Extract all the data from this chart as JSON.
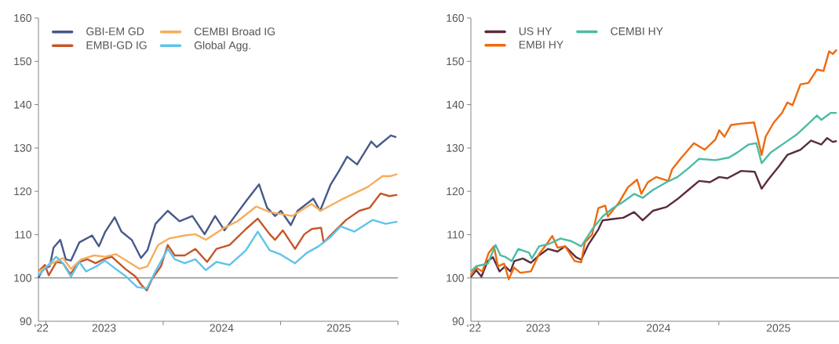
{
  "chart_data": [
    {
      "type": "line",
      "legend": "top left",
      "xlim": [
        "2022-12-09",
        "2026-01-01"
      ],
      "ylim": [
        90,
        160
      ],
      "yticks": [
        90,
        100,
        110,
        120,
        130,
        140,
        150,
        160
      ],
      "xticks": [
        {
          "value": "2022-12-18",
          "label": "‘22"
        },
        {
          "value": "2023-01-01",
          "label": null
        },
        {
          "value": "2023-07-01",
          "label": "2023"
        },
        {
          "value": "2024-01-01",
          "label": null
        },
        {
          "value": "2024-07-01",
          "label": "2024"
        },
        {
          "value": "2025-01-01",
          "label": null
        },
        {
          "value": "2025-07-01",
          "label": "2025"
        },
        {
          "value": "2026-01-01",
          "label": null
        }
      ],
      "ref_lines": [
        {
          "axis": "y",
          "value": 100,
          "color": "#808080"
        }
      ],
      "series": [
        {
          "name": "GBI-EM GD",
          "color": "#46598a",
          "x": [
            "2022-12-09",
            "2022-12-24",
            "2023-01-13",
            "2023-01-25",
            "2023-02-15",
            "2023-03-04",
            "2023-03-20",
            "2023-04-15",
            "2023-05-25",
            "2023-06-15",
            "2023-07-05",
            "2023-08-03",
            "2023-08-24",
            "2023-09-25",
            "2023-10-24",
            "2023-11-13",
            "2023-12-08",
            "2024-01-15",
            "2024-02-21",
            "2024-04-01",
            "2024-05-09",
            "2024-06-11",
            "2024-07-10",
            "2024-08-12",
            "2024-09-18",
            "2024-10-26",
            "2024-11-20",
            "2024-12-15",
            "2025-01-02",
            "2025-02-02",
            "2025-02-23",
            "2025-04-13",
            "2025-05-04",
            "2025-06-06",
            "2025-07-04",
            "2025-07-27",
            "2025-08-27",
            "2025-10-10",
            "2025-10-27",
            "2025-12-10",
            "2025-12-27"
          ],
          "values": [
            100.1,
            102.1,
            102.7,
            107.0,
            108.8,
            104.3,
            104.0,
            108.2,
            109.8,
            107.3,
            110.7,
            114.0,
            110.7,
            108.8,
            104.6,
            106.4,
            112.5,
            115.5,
            113.1,
            114.3,
            110.1,
            114.3,
            111.0,
            114.3,
            118.0,
            121.6,
            116.2,
            114.3,
            115.5,
            112.2,
            115.5,
            118.3,
            115.5,
            121.6,
            125.0,
            128.0,
            126.2,
            131.5,
            130.2,
            132.9,
            132.5
          ]
        },
        {
          "name": "EMBI-GD IG",
          "color": "#c5562a",
          "x": [
            "2022-12-09",
            "2022-12-29",
            "2023-01-10",
            "2023-02-03",
            "2023-02-23",
            "2023-03-18",
            "2023-04-15",
            "2023-05-10",
            "2023-06-05",
            "2023-06-29",
            "2023-07-25",
            "2023-09-05",
            "2023-10-07",
            "2023-10-24",
            "2023-11-11",
            "2023-11-27",
            "2023-12-25",
            "2024-01-15",
            "2024-02-06",
            "2024-03-08",
            "2024-04-10",
            "2024-05-17",
            "2024-06-15",
            "2024-07-26",
            "2024-09-15",
            "2024-10-22",
            "2024-11-28",
            "2024-12-15",
            "2025-01-08",
            "2025-02-15",
            "2025-03-16",
            "2025-04-08",
            "2025-05-07",
            "2025-05-15",
            "2025-06-17",
            "2025-07-24",
            "2025-09-03",
            "2025-10-05",
            "2025-11-08",
            "2025-12-05",
            "2025-12-30"
          ],
          "values": [
            101.5,
            103.0,
            100.6,
            103.7,
            103.4,
            100.9,
            103.7,
            104.3,
            103.4,
            104.3,
            104.9,
            102.1,
            100.3,
            98.5,
            97.1,
            99.7,
            102.7,
            107.6,
            105.2,
            105.2,
            106.7,
            103.7,
            106.7,
            107.6,
            111.3,
            113.7,
            110.1,
            108.8,
            111.0,
            106.7,
            110.1,
            111.3,
            111.6,
            108.2,
            110.7,
            113.4,
            115.5,
            116.2,
            119.5,
            118.9,
            119.2
          ]
        },
        {
          "name": "CEMBI Broad IG",
          "color": "#f7ad5a",
          "x": [
            "2022-12-09",
            "2023-01-21",
            "2023-02-23",
            "2023-03-20",
            "2023-04-21",
            "2023-06-01",
            "2023-07-05",
            "2023-08-06",
            "2023-09-08",
            "2023-10-19",
            "2023-11-13",
            "2023-12-16",
            "2024-01-19",
            "2024-03-08",
            "2024-04-10",
            "2024-05-13",
            "2024-07-10",
            "2024-08-20",
            "2024-10-17",
            "2024-11-28",
            "2025-02-06",
            "2025-04-07",
            "2025-05-06",
            "2025-07-07",
            "2025-09-29",
            "2025-11-14",
            "2025-12-08",
            "2025-12-30"
          ],
          "values": [
            101.5,
            103.4,
            104.6,
            102.1,
            104.3,
            105.2,
            104.9,
            105.5,
            104.0,
            102.1,
            102.7,
            107.6,
            109.1,
            109.8,
            110.1,
            108.8,
            111.6,
            113.1,
            116.5,
            115.2,
            114.3,
            117.1,
            115.5,
            118.0,
            121.0,
            123.5,
            123.5,
            124.0
          ]
        },
        {
          "name": "Global Agg.",
          "color": "#5ec4ea",
          "x": [
            "2022-12-09",
            "2023-02-02",
            "2023-02-23",
            "2023-03-20",
            "2023-04-15",
            "2023-05-06",
            "2023-06-08",
            "2023-07-04",
            "2023-08-06",
            "2023-09-08",
            "2023-10-12",
            "2023-11-11",
            "2023-12-08",
            "2024-01-15",
            "2024-02-06",
            "2024-03-08",
            "2024-04-10",
            "2024-05-13",
            "2024-06-15",
            "2024-07-26",
            "2024-09-15",
            "2024-10-22",
            "2024-11-28",
            "2024-12-30",
            "2025-02-15",
            "2025-03-24",
            "2025-04-29",
            "2025-06-06",
            "2025-07-07",
            "2025-08-19",
            "2025-10-14",
            "2025-11-24",
            "2025-12-30"
          ],
          "values": [
            100.6,
            104.9,
            103.4,
            100.3,
            103.7,
            101.5,
            102.7,
            104.0,
            102.1,
            100.3,
            97.9,
            97.6,
            101.5,
            106.7,
            104.3,
            103.4,
            104.3,
            101.8,
            103.7,
            103.0,
            106.4,
            110.7,
            106.4,
            105.5,
            103.4,
            105.8,
            107.3,
            109.5,
            111.9,
            110.7,
            113.4,
            112.5,
            113.0
          ]
        }
      ]
    },
    {
      "type": "line",
      "legend": "top left",
      "xlim": [
        "2022-12-09",
        "2026-01-01"
      ],
      "ylim": [
        90,
        160
      ],
      "yticks": [
        90,
        100,
        110,
        120,
        130,
        140,
        150,
        160
      ],
      "xticks": [
        {
          "value": "2022-12-18",
          "label": "‘22"
        },
        {
          "value": "2023-01-01",
          "label": null
        },
        {
          "value": "2023-07-01",
          "label": "2023"
        },
        {
          "value": "2024-01-01",
          "label": null
        },
        {
          "value": "2024-07-01",
          "label": "2024"
        },
        {
          "value": "2025-01-01",
          "label": null
        },
        {
          "value": "2025-07-01",
          "label": "2025"
        }
      ],
      "ref_lines": [
        {
          "axis": "y",
          "value": 100,
          "color": "#808080"
        }
      ],
      "series": [
        {
          "name": "US HY",
          "color": "#5b2c3d",
          "x": [
            "2022-12-09",
            "2022-12-25",
            "2023-01-10",
            "2023-01-29",
            "2023-02-14",
            "2023-03-06",
            "2023-03-23",
            "2023-04-08",
            "2023-04-20",
            "2023-05-16",
            "2023-06-09",
            "2023-07-04",
            "2023-07-31",
            "2023-08-29",
            "2023-09-21",
            "2023-10-24",
            "2023-11-09",
            "2023-11-30",
            "2023-12-31",
            "2024-01-13",
            "2024-02-13",
            "2024-03-16",
            "2024-04-18",
            "2024-05-14",
            "2024-06-14",
            "2024-07-26",
            "2024-08-28",
            "2024-09-30",
            "2024-11-02",
            "2024-12-05",
            "2025-01-02",
            "2025-01-27",
            "2025-03-10",
            "2025-04-20",
            "2025-05-11",
            "2025-05-31",
            "2025-07-03",
            "2025-07-28",
            "2025-09-06",
            "2025-10-08",
            "2025-11-08",
            "2025-11-26",
            "2025-12-13",
            "2025-12-25"
          ],
          "values": [
            100.2,
            101.8,
            100.3,
            103.9,
            104.8,
            101.5,
            102.7,
            101.5,
            103.9,
            104.5,
            103.5,
            105.2,
            106.7,
            106.1,
            107.3,
            104.8,
            104.2,
            107.6,
            111.2,
            113.3,
            113.6,
            113.9,
            115.2,
            113.3,
            115.5,
            116.4,
            118.2,
            120.3,
            122.4,
            122.1,
            123.3,
            123.0,
            124.7,
            124.5,
            120.6,
            122.7,
            125.8,
            128.4,
            129.6,
            131.7,
            130.8,
            132.3,
            131.4,
            131.6
          ]
        },
        {
          "name": "EMBI HY",
          "color": "#ee6a0d",
          "x": [
            "2022-12-09",
            "2022-12-25",
            "2023-01-13",
            "2023-02-01",
            "2023-02-17",
            "2023-03-01",
            "2023-03-20",
            "2023-04-03",
            "2023-04-19",
            "2023-05-08",
            "2023-06-09",
            "2023-07-04",
            "2023-07-28",
            "2023-08-13",
            "2023-08-29",
            "2023-09-21",
            "2023-10-20",
            "2023-11-09",
            "2023-11-20",
            "2023-12-12",
            "2023-12-31",
            "2024-01-21",
            "2024-01-29",
            "2024-03-02",
            "2024-03-30",
            "2024-04-27",
            "2024-05-10",
            "2024-05-30",
            "2024-06-24",
            "2024-07-31",
            "2024-08-12",
            "2024-09-06",
            "2024-10-17",
            "2024-11-19",
            "2024-12-22",
            "2025-01-02",
            "2025-01-18",
            "2025-02-07",
            "2025-03-08",
            "2025-04-18",
            "2025-05-11",
            "2025-05-23",
            "2025-06-17",
            "2025-07-12",
            "2025-07-28",
            "2025-08-13",
            "2025-09-06",
            "2025-09-30",
            "2025-10-26",
            "2025-11-15",
            "2025-12-02",
            "2025-12-13",
            "2025-12-25"
          ],
          "values": [
            100.6,
            102.4,
            101.5,
            105.8,
            107.3,
            102.7,
            103.3,
            99.7,
            102.4,
            101.2,
            101.5,
            105.5,
            107.9,
            109.7,
            107.0,
            107.3,
            103.9,
            103.6,
            108.2,
            110.0,
            116.1,
            116.7,
            114.2,
            117.3,
            120.9,
            122.7,
            119.4,
            122.1,
            123.3,
            122.4,
            125.1,
            127.5,
            131.1,
            129.6,
            132.0,
            134.1,
            132.6,
            135.3,
            135.6,
            135.9,
            128.4,
            132.6,
            135.9,
            138.1,
            140.5,
            139.9,
            144.7,
            145.0,
            148.1,
            147.8,
            152.3,
            151.7,
            152.7
          ]
        },
        {
          "name": "CEMBI HY",
          "color": "#4cbba5",
          "x": [
            "2022-12-09",
            "2022-12-25",
            "2023-01-29",
            "2023-02-22",
            "2023-03-09",
            "2023-03-25",
            "2023-04-12",
            "2023-05-02",
            "2023-06-04",
            "2023-06-12",
            "2023-07-04",
            "2023-08-05",
            "2023-09-07",
            "2023-10-10",
            "2023-11-09",
            "2023-12-12",
            "2024-01-13",
            "2024-02-13",
            "2024-03-16",
            "2024-04-18",
            "2024-05-14",
            "2024-06-14",
            "2024-07-26",
            "2024-08-28",
            "2024-09-30",
            "2024-11-02",
            "2024-12-22",
            "2025-02-01",
            "2025-02-27",
            "2025-04-01",
            "2025-04-25",
            "2025-05-11",
            "2025-06-08",
            "2025-07-24",
            "2025-08-27",
            "2025-09-30",
            "2025-10-26",
            "2025-11-08",
            "2025-12-07",
            "2025-12-25"
          ],
          "values": [
            101.5,
            102.7,
            103.3,
            107.6,
            105.2,
            104.8,
            103.9,
            106.7,
            105.8,
            104.5,
            107.3,
            107.9,
            109.1,
            108.5,
            107.3,
            111.2,
            114.2,
            116.1,
            117.6,
            119.4,
            118.5,
            120.3,
            122.1,
            123.3,
            125.3,
            127.5,
            127.2,
            127.8,
            129.0,
            130.8,
            131.1,
            126.5,
            129.0,
            131.4,
            133.2,
            135.6,
            137.5,
            136.5,
            138.1,
            138.1
          ]
        }
      ]
    }
  ]
}
